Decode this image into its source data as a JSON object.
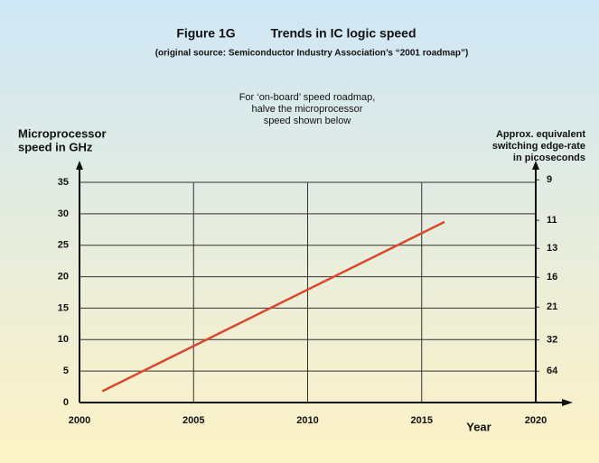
{
  "chart_data": {
    "type": "line",
    "title": [
      "Figure 1G",
      "Trends in IC logic speed"
    ],
    "subtitle": "(original source: Semiconductor Industry Association’s “2001 roadmap”)",
    "annotation": [
      "For ‘on-board’ speed roadmap,",
      "halve the microprocessor",
      "speed shown below"
    ],
    "ylabel": [
      "Microprocessor",
      "speed in GHz"
    ],
    "y2label": [
      "Approx. equivalent",
      "switching edge-rate",
      "in picoseconds"
    ],
    "xlabel": "Year",
    "x": [
      2001,
      2016
    ],
    "series": [
      {
        "name": "Microprocessor speed",
        "color": "#d9482b",
        "values": [
          1.8,
          28.7
        ]
      }
    ],
    "xlim": [
      2000,
      2020
    ],
    "xticks": [
      2000,
      2005,
      2010,
      2015,
      2020
    ],
    "ylim": [
      0,
      35
    ],
    "yticks": [
      0,
      5,
      10,
      15,
      20,
      25,
      30,
      35
    ],
    "y2scale": "reciprocal",
    "y2lim": [
      null,
      9.1
    ],
    "y2ticks": [
      9,
      11,
      13,
      16,
      21,
      32,
      64
    ],
    "grid": true
  }
}
